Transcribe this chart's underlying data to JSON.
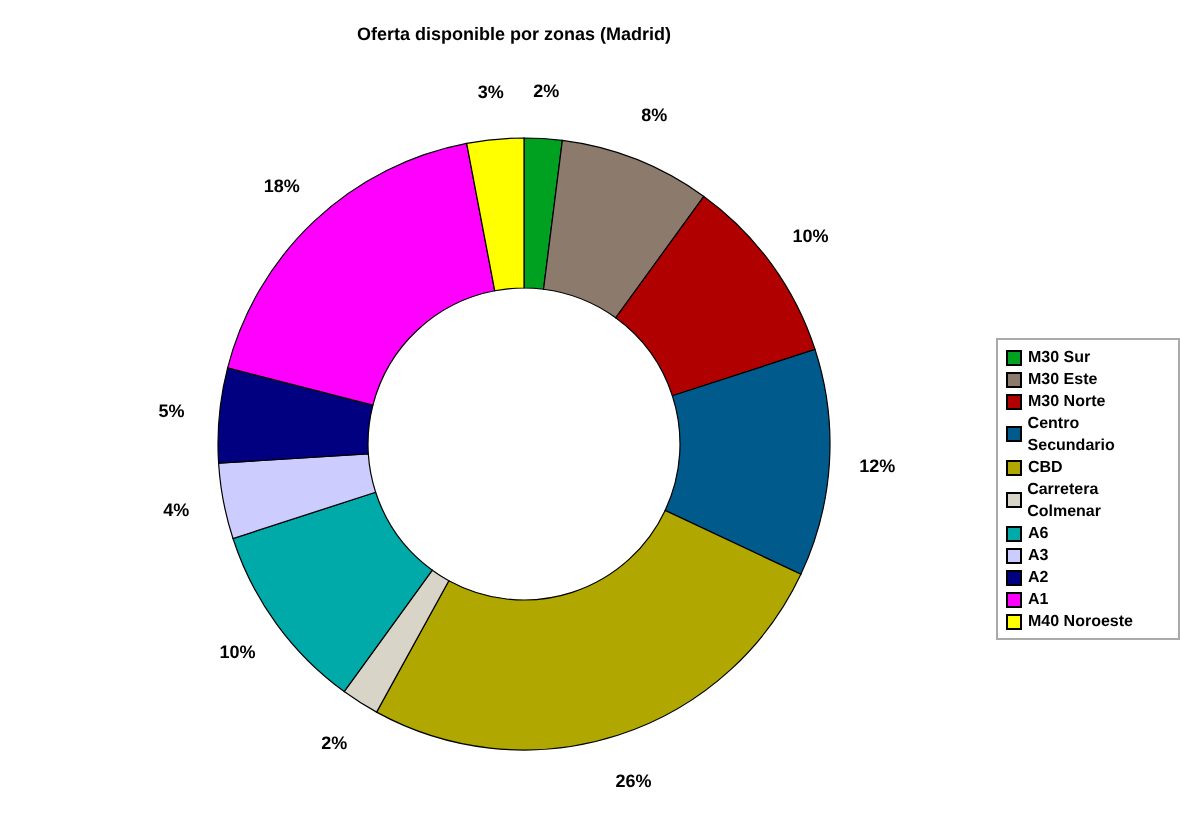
{
  "chart_data": {
    "type": "donut",
    "title": "Oferta disponible por zonas (Madrid)",
    "categories": [
      "M30 Sur",
      "M30 Este",
      "M30 Norte",
      "Centro Secundario",
      "CBD",
      "Carretera Colmenar",
      "A6",
      "A3",
      "A2",
      "A1",
      "M40 Noroeste"
    ],
    "values": [
      2,
      8,
      10,
      12,
      26,
      2,
      10,
      4,
      5,
      18,
      3
    ],
    "value_labels": [
      "2%",
      "8%",
      "10%",
      "12%",
      "26%",
      "2%",
      "10%",
      "4%",
      "5%",
      "18%",
      "3%"
    ],
    "colors": [
      "#00a020",
      "#8c7a6c",
      "#b00000",
      "#005a8c",
      "#b0a800",
      "#d8d4c8",
      "#00aaa8",
      "#ccccff",
      "#000080",
      "#ff00ff",
      "#ffff00"
    ],
    "legend": "right"
  }
}
